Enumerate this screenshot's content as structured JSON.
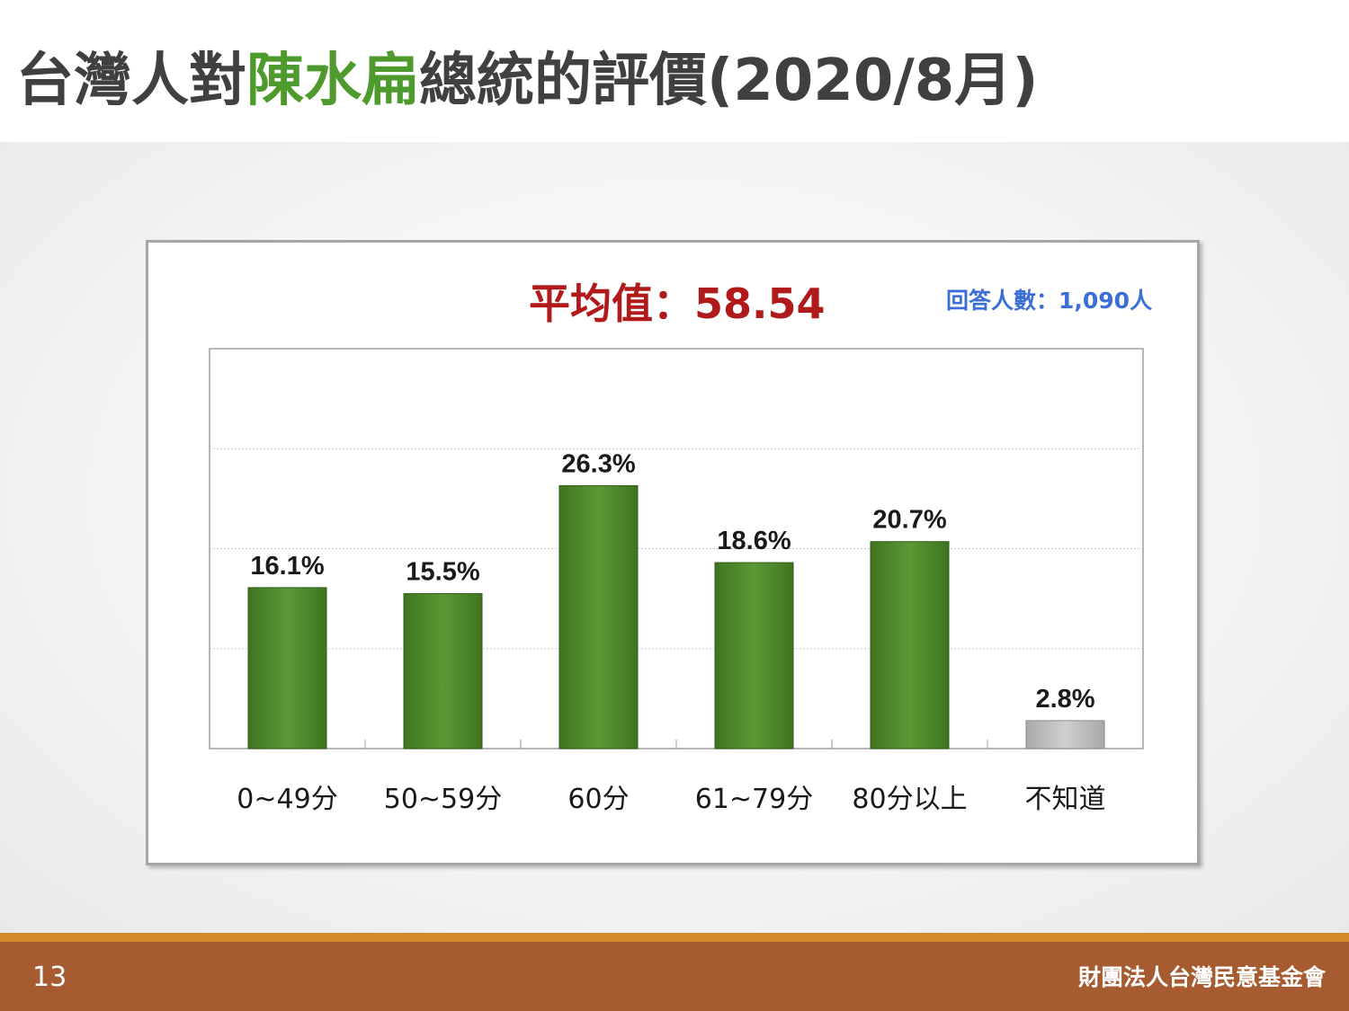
{
  "slide": {
    "title_before": "台灣人對",
    "title_highlight": "陳水扁",
    "title_after": "總統的評價(2020/8月)",
    "page_number": "13",
    "organization": "財團法人台灣民意基金會"
  },
  "chart_data": {
    "type": "bar",
    "categories": [
      "0~49分",
      "50~59分",
      "60分",
      "61~79分",
      "80分以上",
      "不知道"
    ],
    "values": [
      16.1,
      15.5,
      26.3,
      18.6,
      20.7,
      2.8
    ],
    "value_labels": [
      "16.1%",
      "15.5%",
      "26.3%",
      "18.6%",
      "20.7%",
      "2.8%"
    ],
    "highlight_text": "平均值：58.54",
    "annotation": "回答人數：1,090人",
    "ylim": [
      0,
      40
    ],
    "gridlines": [
      10,
      20,
      30
    ],
    "grid": true,
    "legend": "none",
    "colors": {
      "bar": "#4f8a2b",
      "bar_unknown": "#b8b8b8",
      "highlight": "#b01a1a",
      "annotation": "#3b6fd6"
    }
  }
}
